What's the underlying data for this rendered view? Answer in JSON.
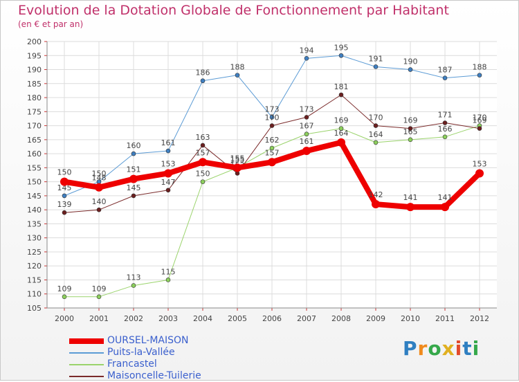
{
  "title": "Evolution de la Dotation Globale de Fonctionnement par Habitant",
  "subtitle": "(en € et par an)",
  "logo": {
    "p": "P",
    "r": "r",
    "o": "o",
    "x": "x",
    "i": "i",
    "t": "t",
    "i2": "i"
  },
  "chart_data": {
    "type": "line",
    "x": [
      "2000",
      "2001",
      "2002",
      "2003",
      "2004",
      "2005",
      "2006",
      "2007",
      "2008",
      "2009",
      "2010",
      "2011",
      "2012"
    ],
    "ylim": [
      105,
      200
    ],
    "yticks": [
      105,
      110,
      115,
      120,
      125,
      130,
      135,
      140,
      145,
      150,
      155,
      160,
      165,
      170,
      175,
      180,
      185,
      190,
      195,
      200
    ],
    "grid": true,
    "series": [
      {
        "name": "Puits-la-Vallée",
        "color": "#5b9bd5",
        "width": 1,
        "marker": "#3f7fc1",
        "values": [
          145,
          150,
          160,
          161,
          186,
          188,
          173,
          194,
          195,
          191,
          190,
          187,
          188
        ]
      },
      {
        "name": "Francastel",
        "color": "#9ad36b",
        "width": 1,
        "marker": "#8ccf5c",
        "values": [
          109,
          109,
          113,
          115,
          150,
          155,
          162,
          167,
          169,
          164,
          165,
          166,
          170
        ]
      },
      {
        "name": "Maisoncelle-Tuilerie",
        "color": "#7a2a2a",
        "width": 1,
        "marker": "#6b1f1f",
        "values": [
          139,
          140,
          145,
          147,
          163,
          153,
          170,
          173,
          181,
          170,
          169,
          171,
          169
        ]
      },
      {
        "name": "OURSEL-MAISON",
        "color": "#ee0000",
        "width": 8,
        "marker": "#ee0000",
        "values": [
          150,
          148,
          151,
          153,
          157,
          155,
          157,
          161,
          164,
          142,
          141,
          141,
          153
        ]
      }
    ],
    "legend": [
      "OURSEL-MAISON",
      "Puits-la-Vallée",
      "Francastel",
      "Maisoncelle-Tuilerie"
    ]
  }
}
